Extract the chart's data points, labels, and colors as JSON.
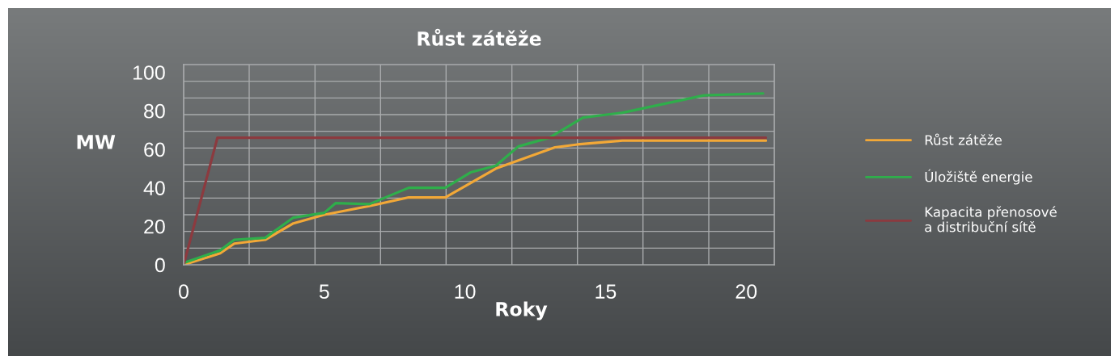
{
  "chart_data": {
    "type": "line",
    "title": "Růst zátěže",
    "xlabel": "Roky",
    "ylabel": "MW",
    "xlim": [
      0,
      21
    ],
    "xticks": [
      0,
      {
        "value": 2.33,
        "label": null
      },
      {
        "value": 4.67,
        "label": null
      },
      5,
      {
        "value": 7,
        "label": null
      },
      {
        "value": 9.33,
        "label": null
      },
      10,
      {
        "value": 11.67,
        "label": null
      },
      {
        "value": 14,
        "label": null
      },
      15,
      {
        "value": 16.33,
        "label": null
      },
      {
        "value": 18.67,
        "label": null
      },
      20
    ],
    "ylim": [
      0,
      104
    ],
    "yticks": [
      0,
      {
        "value": 8.67,
        "label": null
      },
      {
        "value": 17.33,
        "label": null
      },
      20,
      {
        "value": 26,
        "label": null
      },
      {
        "value": 34.67,
        "label": null
      },
      40,
      {
        "value": 43.33,
        "label": null
      },
      {
        "value": 52,
        "label": null
      },
      60,
      {
        "value": 60.67,
        "label": null
      },
      {
        "value": 69.33,
        "label": null
      },
      {
        "value": 78,
        "label": null
      },
      80,
      {
        "value": 86.67,
        "label": null
      },
      {
        "value": 95.33,
        "label": null
      },
      100
    ],
    "grid": true,
    "legend": "right",
    "marker": "none",
    "line_style": "solid",
    "series": [
      {
        "name": "Růst zátěže",
        "color": "#f2a837",
        "x": [
          0,
          1.3,
          1.8,
          2.9,
          3.9,
          5.0,
          6.6,
          8.0,
          9.3,
          11.1,
          13.2,
          14.0,
          15.6,
          20.7
        ],
        "values": [
          0,
          6,
          11,
          13,
          21.5,
          26,
          30.5,
          35,
          35,
          50,
          61,
          62.5,
          64.5,
          64.5
        ]
      },
      {
        "name": "Úložiště energie",
        "color": "#2fae4b",
        "x": [
          0,
          1.3,
          1.8,
          2.9,
          3.9,
          5.0,
          5.4,
          6.6,
          8.0,
          9.3,
          10.2,
          11.1,
          11.9,
          13.0,
          14.2,
          15.6,
          18.5,
          20.6
        ],
        "values": [
          1,
          7.5,
          13,
          14,
          24.5,
          27,
          32,
          31.5,
          40,
          40,
          48,
          51.5,
          61.5,
          66,
          76.5,
          79,
          88,
          89
        ]
      },
      {
        "name": "Kapacita přenosové\na distribuční sítě",
        "color": "#8c3a3f",
        "x": [
          0,
          1.2,
          20.7
        ],
        "values": [
          0,
          66,
          66
        ]
      }
    ]
  }
}
